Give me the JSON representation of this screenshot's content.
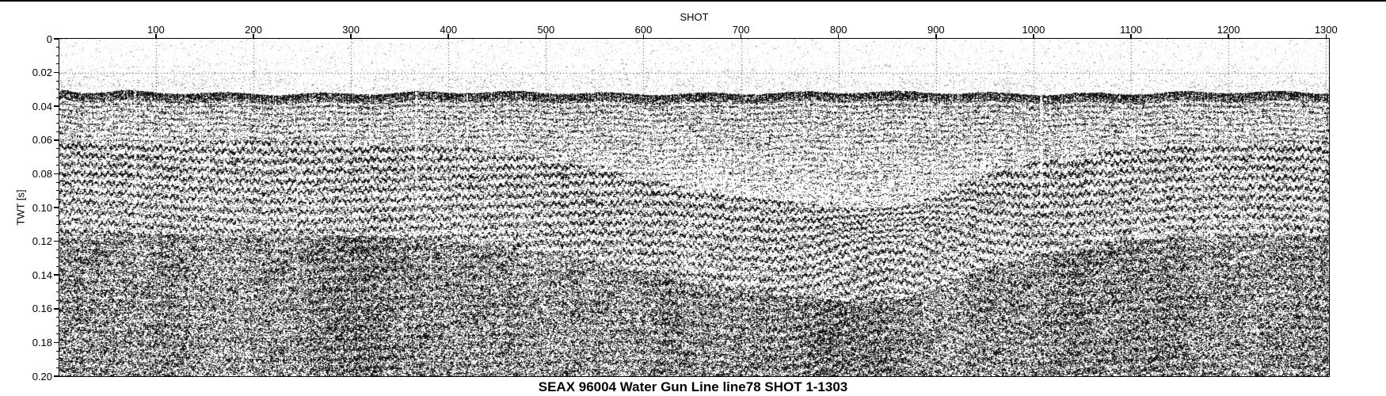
{
  "figure": {
    "title": "SEAX 96004 Water Gun Line line78 SHOT 1-1303",
    "x_axis": {
      "label": "SHOT",
      "min": 1,
      "max": 1303,
      "tick_values": [
        100,
        200,
        300,
        400,
        500,
        600,
        700,
        800,
        900,
        1000,
        1100,
        1200,
        1300
      ],
      "tick_labels": [
        "100",
        "200",
        "300",
        "400",
        "500",
        "600",
        "700",
        "800",
        "900",
        "1000",
        "1100",
        "1200",
        "1300"
      ]
    },
    "y_axis": {
      "label": "TWT [s]",
      "min": 0,
      "max": 0.2,
      "minor_step": 0.005,
      "tick_values": [
        0,
        0.02,
        0.04,
        0.06,
        0.08,
        0.1,
        0.12,
        0.14,
        0.16,
        0.18,
        0.2
      ],
      "tick_labels": [
        "0",
        "0.02",
        "0.04",
        "0.06",
        "0.08",
        "0.10",
        "0.12",
        "0.14",
        "0.16",
        "0.18",
        "0.20"
      ]
    },
    "colors": {
      "foreground": "#000000",
      "background": "#ffffff",
      "grid": "#333333"
    },
    "grid_style": "dotted lines at every major tick, both axes"
  },
  "chart_data": {
    "type": "heatmap",
    "subtype": "seismic-reflection-section",
    "title": "SEAX 96004 Water Gun Line line78 SHOT 1-1303",
    "xlabel": "SHOT",
    "ylabel": "TWT [s]",
    "xlim": [
      1,
      1303
    ],
    "ylim": [
      0.2,
      0
    ],
    "x_ticks": [
      100,
      200,
      300,
      400,
      500,
      600,
      700,
      800,
      900,
      1000,
      1100,
      1200,
      1300
    ],
    "y_ticks": [
      0,
      0.02,
      0.04,
      0.06,
      0.08,
      0.1,
      0.12,
      0.14,
      0.16,
      0.18,
      0.2
    ],
    "palette": "grayscale variable-density, high amplitude = black",
    "legend": "none",
    "features": [
      {
        "name": "water-column",
        "twt_s": [
          0,
          0.036
        ],
        "description": "nearly blank white zone with faint gray noise streaks near 0.025-0.035 s; darker smudges at shots < 100"
      },
      {
        "name": "seafloor-first-arrival",
        "twt_s": 0.038,
        "description": "strong continuous dark reflector band, essentially flat across all 1303 shots, just above the 0.04 s gridline"
      },
      {
        "name": "shallow-ringing",
        "twt_s": [
          0.042,
          0.06
        ],
        "description": "high-frequency reverberatory banding with vertical trace striping directly below the seafloor"
      },
      {
        "name": "layered-reflectors",
        "twt_s": [
          0.055,
          0.13
        ],
        "description": "sub-parallel wiggly reflectors with ~0.005 s spacing"
      },
      {
        "name": "transparent-swale",
        "shots": [
          650,
          950
        ],
        "description": "acoustically transparent lighter zone; reflector tops deepen from ~0.055 s to ~0.095 s toward shot ~1000"
      },
      {
        "name": "buried-channel-sag",
        "shot_center": 855,
        "twt_s": [
          0.07,
          0.105
        ],
        "description": "V-shaped downward sag of reflectors centered near shot 855, deepest point ~0.105 s"
      },
      {
        "name": "deep-chaotic-zone",
        "twt_s": [
          0.13,
          0.2
        ],
        "description": "incoherent speckled chevron-textured energy with columnar density variations down to the bottom of the record"
      }
    ]
  }
}
